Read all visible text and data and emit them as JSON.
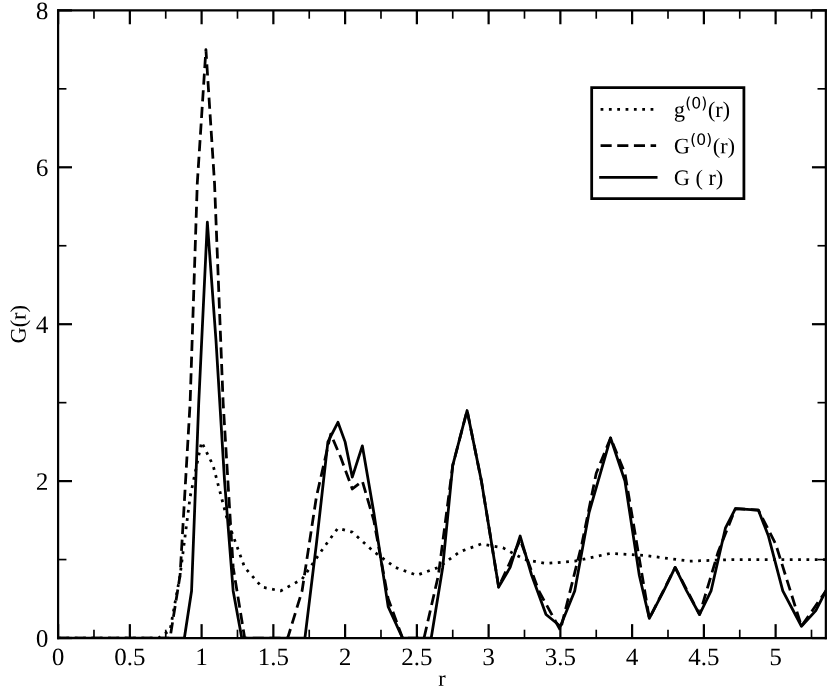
{
  "chart_data": {
    "type": "line",
    "xlabel": "r",
    "ylabel": "G(r)",
    "xlim": [
      0,
      5.35
    ],
    "ylim": [
      0,
      8
    ],
    "xticks": [
      0,
      0.5,
      1,
      1.5,
      2,
      2.5,
      3,
      3.5,
      4,
      4.5,
      5
    ],
    "yticks": [
      0,
      2,
      4,
      6,
      8
    ],
    "grid": false,
    "legend": "top right",
    "marker": "none",
    "series": [
      {
        "name": "g$^{(0)}$(r)",
        "color": "#000000",
        "line_style": "dotted",
        "x": [
          0,
          0.7,
          0.78,
          0.85,
          0.92,
          1.0,
          1.08,
          1.18,
          1.3,
          1.42,
          1.55,
          1.7,
          1.85,
          1.95,
          2.05,
          2.2,
          2.35,
          2.5,
          2.65,
          2.8,
          2.95,
          3.1,
          3.25,
          3.4,
          3.6,
          3.85,
          4.1,
          4.4,
          4.7,
          5.0,
          5.35
        ],
        "values": [
          0,
          0,
          0.1,
          0.8,
          1.8,
          2.5,
          2.2,
          1.5,
          0.9,
          0.65,
          0.6,
          0.75,
          1.15,
          1.4,
          1.35,
          1.1,
          0.9,
          0.8,
          0.9,
          1.1,
          1.2,
          1.15,
          1.0,
          0.95,
          0.98,
          1.08,
          1.05,
          0.98,
          1.0,
          1.0,
          1.0
        ]
      },
      {
        "name": "G$^{(0)}$(r)",
        "color": "#000000",
        "line_style": "dashed",
        "x": [
          0,
          0.78,
          0.85,
          0.92,
          0.97,
          1.03,
          1.09,
          1.15,
          1.22,
          1.3,
          1.6,
          1.7,
          1.8,
          1.9,
          1.97,
          2.05,
          2.12,
          2.2,
          2.3,
          2.4,
          2.55,
          2.65,
          2.75,
          2.85,
          2.95,
          3.07,
          3.22,
          3.35,
          3.5,
          3.65,
          3.75,
          3.85,
          3.95,
          4.12,
          4.3,
          4.47,
          4.6,
          4.72,
          4.88,
          5.0,
          5.18,
          5.35
        ],
        "values": [
          0,
          0,
          0.8,
          3.0,
          5.8,
          7.5,
          5.8,
          3.0,
          0.9,
          0,
          0,
          0.6,
          1.8,
          2.6,
          2.3,
          1.9,
          2.0,
          1.5,
          0.5,
          0,
          0,
          0.8,
          2.2,
          2.9,
          2.0,
          0.65,
          1.25,
          0.6,
          0.1,
          1.2,
          2.1,
          2.55,
          2.1,
          0.25,
          0.9,
          0.3,
          1.1,
          1.65,
          1.63,
          1.2,
          0.15,
          0.6
        ]
      },
      {
        "name": "G ( r)",
        "color": "#000000",
        "line_style": "solid",
        "x": [
          0,
          0.88,
          0.93,
          0.98,
          1.04,
          1.1,
          1.16,
          1.22,
          1.28,
          1.72,
          1.8,
          1.88,
          1.95,
          2.0,
          2.05,
          2.12,
          2.2,
          2.3,
          2.4,
          2.6,
          2.68,
          2.75,
          2.85,
          2.95,
          3.07,
          3.15,
          3.22,
          3.3,
          3.4,
          3.5,
          3.6,
          3.7,
          3.85,
          3.95,
          4.05,
          4.12,
          4.22,
          4.3,
          4.38,
          4.47,
          4.55,
          4.65,
          4.72,
          4.8,
          4.88,
          4.95,
          5.05,
          5.18,
          5.28,
          5.35
        ],
        "values": [
          0,
          0,
          0.6,
          3.0,
          5.3,
          3.8,
          2.0,
          0.6,
          0,
          0,
          1.2,
          2.5,
          2.75,
          2.5,
          2.05,
          2.45,
          1.6,
          0.4,
          0,
          0,
          0.9,
          2.2,
          2.9,
          2.0,
          0.65,
          0.9,
          1.3,
          0.8,
          0.3,
          0.15,
          0.6,
          1.6,
          2.55,
          2.0,
          0.8,
          0.25,
          0.6,
          0.9,
          0.6,
          0.3,
          0.6,
          1.4,
          1.65,
          1.64,
          1.63,
          1.3,
          0.6,
          0.15,
          0.35,
          0.6
        ]
      }
    ]
  }
}
